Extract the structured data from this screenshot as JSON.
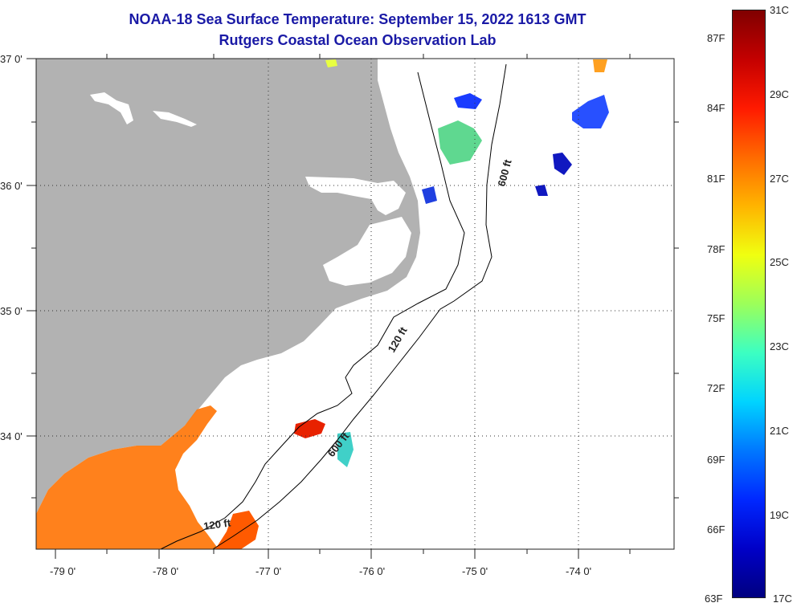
{
  "title": {
    "line1": "NOAA-18 Sea Surface Temperature:  September 15, 2022 1613 GMT",
    "line2": "Rutgers Coastal Ocean Observation Lab"
  },
  "map": {
    "lat_labels": [
      "37 0'",
      "36 0'",
      "35 0'",
      "34 0'"
    ],
    "lon_labels": [
      "-79 0'",
      "-78 0'",
      "-77 0'",
      "-76 0'",
      "-75 0'",
      "-74 0'"
    ],
    "contours": [
      {
        "id": "600-north",
        "label": "600 ft"
      },
      {
        "id": "120-mid",
        "label": "120 ft"
      },
      {
        "id": "600-south",
        "label": "600 ft"
      },
      {
        "id": "120-south",
        "label": "120 ft"
      }
    ],
    "colors": {
      "land": "#b2b2b2",
      "ocean": "#ffffff",
      "title": "#1a1aa6"
    }
  },
  "colorbar": {
    "fahrenheit": [
      "87F",
      "84F",
      "81F",
      "78F",
      "75F",
      "72F",
      "69F",
      "66F",
      "63F"
    ],
    "celsius": [
      "31C",
      "29C",
      "27C",
      "25C",
      "23C",
      "21C",
      "19C",
      "17C"
    ],
    "gradient": [
      "#800000",
      "#c40000",
      "#ff1a00",
      "#ff6a00",
      "#ffb400",
      "#f0ff10",
      "#9cff5a",
      "#3cffc2",
      "#00d4ff",
      "#0078ff",
      "#0028ff",
      "#0000c8",
      "#000080"
    ]
  }
}
